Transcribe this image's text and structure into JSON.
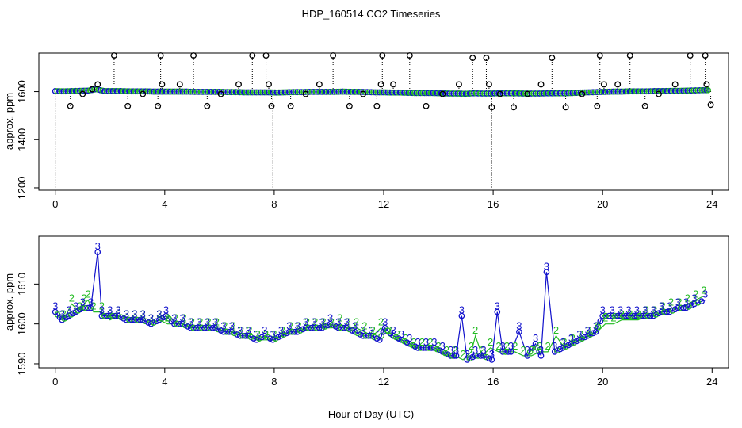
{
  "title": "HDP_160514  CO2 Timeseries",
  "xlabel": "Hour of Day (UTC)",
  "colors": {
    "green": "#22bb22",
    "blue": "#1111cc",
    "black": "#000000"
  },
  "chart_data": [
    {
      "type": "scatter",
      "title": "HDP_160514  CO2 Timeseries",
      "ylabel": "approx. ppm",
      "xlim": [
        -0.6,
        24.6
      ],
      "ylim": [
        1190,
        1760
      ],
      "x_ticks": [
        "0",
        "4",
        "8",
        "12",
        "16",
        "20",
        "24"
      ],
      "y_ticks": [
        "1200",
        "1400",
        "1600"
      ],
      "grid": false,
      "series": [
        {
          "marker": "green/blue circles",
          "x": [
            0.0,
            0.3,
            0.6,
            0.9,
            1.2,
            1.5,
            1.8,
            2.1,
            2.4,
            2.7,
            3.0,
            3.3,
            3.6,
            3.9,
            4.2,
            4.5,
            4.8,
            5.1,
            5.4,
            5.7,
            6.0,
            6.3,
            6.6,
            6.9,
            7.2,
            7.5,
            7.8,
            8.1,
            8.4,
            8.7,
            9.0,
            9.3,
            9.6,
            9.9,
            10.2,
            10.5,
            10.8,
            11.1,
            11.4,
            11.7,
            12.0,
            12.3,
            12.6,
            12.9,
            13.2,
            13.5,
            13.8,
            14.1,
            14.4,
            14.7,
            15.0,
            15.3,
            15.6,
            15.9,
            16.2,
            16.5,
            16.8,
            17.1,
            17.4,
            17.7,
            18.0,
            18.3,
            18.6,
            18.9,
            19.2,
            19.5,
            19.8,
            20.1,
            20.4,
            20.7,
            21.0,
            21.3,
            21.6,
            21.9,
            22.2,
            22.5,
            22.8,
            23.1,
            23.4,
            23.7,
            23.9
          ],
          "y": [
            1602,
            1601,
            1602,
            1603,
            1604,
            1610,
            1602,
            1602,
            1602,
            1601,
            1601,
            1601,
            1600,
            1600,
            1600,
            1600,
            1600,
            1599,
            1599,
            1599,
            1599,
            1598,
            1598,
            1597,
            1597,
            1597,
            1597,
            1596,
            1597,
            1598,
            1598,
            1599,
            1599,
            1599,
            1599,
            1600,
            1599,
            1599,
            1598,
            1597,
            1597,
            1596,
            1596,
            1595,
            1594,
            1594,
            1594,
            1593,
            1592,
            1592,
            1591,
            1593,
            1592,
            1592,
            1593,
            1593,
            1593,
            1592,
            1592,
            1592,
            1593,
            1593,
            1593,
            1594,
            1596,
            1597,
            1598,
            1599,
            1600,
            1600,
            1601,
            1601,
            1601,
            1602,
            1602,
            1603,
            1603,
            1604,
            1605,
            1606,
            1606
          ]
        },
        {
          "marker": "black circles (outliers)",
          "x": [
            0.55,
            1.0,
            1.35,
            1.55,
            2.15,
            2.65,
            3.2,
            3.75,
            3.85,
            3.9,
            4.55,
            5.05,
            5.55,
            6.05,
            6.7,
            7.2,
            7.7,
            7.8,
            7.9,
            8.6,
            9.15,
            9.65,
            10.15,
            10.75,
            11.25,
            11.75,
            11.9,
            11.95,
            12.35,
            12.95,
            13.55,
            14.15,
            14.75,
            15.25,
            15.75,
            15.85,
            15.95,
            16.25,
            16.75,
            17.25,
            17.75,
            18.15,
            18.65,
            19.25,
            19.8,
            19.9,
            20.05,
            20.55,
            21.0,
            21.55,
            22.05,
            22.65,
            23.2,
            23.75,
            23.8,
            23.95
          ],
          "y": [
            1540,
            1590,
            1610,
            1630,
            1750,
            1540,
            1590,
            1540,
            1750,
            1630,
            1630,
            1750,
            1540,
            1590,
            1630,
            1750,
            1750,
            1630,
            1540,
            1540,
            1590,
            1630,
            1750,
            1540,
            1590,
            1540,
            1630,
            1750,
            1630,
            1750,
            1540,
            1590,
            1630,
            1740,
            1740,
            1630,
            1535,
            1590,
            1535,
            1590,
            1630,
            1740,
            1535,
            1590,
            1540,
            1750,
            1630,
            1630,
            1750,
            1540,
            1590,
            1630,
            1750,
            1750,
            1630,
            1545
          ]
        }
      ]
    },
    {
      "type": "line",
      "ylabel": "approx. ppm",
      "xlim": [
        -0.6,
        24.6
      ],
      "ylim": [
        1589,
        1622
      ],
      "x_ticks": [
        "0",
        "4",
        "8",
        "12",
        "16",
        "20",
        "24"
      ],
      "y_ticks": [
        "1590",
        "1600",
        "1610"
      ],
      "grid": false,
      "series": [
        {
          "symbol": "2",
          "color": "#22bb22",
          "x": [
            0.3,
            0.6,
            0.9,
            1.05,
            1.2,
            1.4,
            1.7,
            2.0,
            2.3,
            2.6,
            2.9,
            3.2,
            3.5,
            3.8,
            4.1,
            4.4,
            4.7,
            5.0,
            5.3,
            5.6,
            5.9,
            6.2,
            6.5,
            6.8,
            7.1,
            7.4,
            7.7,
            8.0,
            8.3,
            8.6,
            8.9,
            9.2,
            9.5,
            9.8,
            10.1,
            10.4,
            10.7,
            11.0,
            11.3,
            11.6,
            11.9,
            12.2,
            12.5,
            12.8,
            13.1,
            13.4,
            13.7,
            14.0,
            14.3,
            14.6,
            14.9,
            15.2,
            15.35,
            15.6,
            15.9,
            16.2,
            16.5,
            16.8,
            17.1,
            17.4,
            17.7,
            18.0,
            18.3,
            18.6,
            18.9,
            19.2,
            19.5,
            19.8,
            20.1,
            20.4,
            20.7,
            21.0,
            21.3,
            21.6,
            21.9,
            22.2,
            22.5,
            22.8,
            23.1,
            23.4,
            23.7
          ],
          "y": [
            1601,
            1605,
            1603,
            1605,
            1606,
            1603,
            1603,
            1601,
            1602,
            1601,
            1601,
            1601,
            1600,
            1601,
            1600,
            1600,
            1600,
            1599,
            1599,
            1599,
            1599,
            1598,
            1598,
            1597,
            1597,
            1596,
            1596,
            1596,
            1597,
            1598,
            1598,
            1599,
            1599,
            1599,
            1599,
            1600,
            1599,
            1599,
            1598,
            1597,
            1599,
            1597,
            1596,
            1595,
            1594,
            1594,
            1594,
            1593,
            1592,
            1592,
            1591,
            1593,
            1597,
            1592,
            1594,
            1593,
            1593,
            1593,
            1592,
            1592,
            1593,
            1593,
            1597,
            1594,
            1595,
            1596,
            1597,
            1598,
            1600,
            1600,
            1601,
            1601,
            1601,
            1602,
            1602,
            1603,
            1604,
            1604,
            1605,
            1606,
            1607
          ]
        },
        {
          "symbol": "3",
          "color": "#1111cc",
          "x": [
            0.0,
            0.25,
            0.5,
            0.75,
            1.0,
            1.3,
            1.55,
            1.7,
            2.0,
            2.3,
            2.6,
            2.9,
            3.2,
            3.5,
            3.8,
            4.05,
            4.35,
            4.65,
            4.95,
            5.25,
            5.55,
            5.85,
            6.15,
            6.45,
            6.75,
            7.05,
            7.35,
            7.65,
            7.95,
            8.25,
            8.55,
            8.85,
            9.15,
            9.45,
            9.75,
            10.05,
            10.35,
            10.65,
            10.95,
            11.25,
            11.55,
            11.85,
            12.05,
            12.35,
            12.65,
            12.95,
            13.25,
            13.55,
            13.85,
            14.15,
            14.45,
            14.65,
            14.85,
            15.05,
            15.35,
            15.65,
            15.95,
            16.15,
            16.35,
            16.65,
            16.95,
            17.25,
            17.55,
            17.75,
            17.95,
            18.25,
            18.55,
            18.85,
            19.15,
            19.45,
            19.75,
            20.0,
            20.35,
            20.65,
            20.95,
            21.25,
            21.55,
            21.85,
            22.15,
            22.45,
            22.75,
            23.05,
            23.35,
            23.75
          ],
          "y": [
            1603,
            1601,
            1602,
            1603,
            1604,
            1604,
            1618,
            1602,
            1602,
            1602,
            1601,
            1601,
            1601,
            1600,
            1601,
            1602,
            1600,
            1600,
            1599,
            1599,
            1599,
            1599,
            1598,
            1598,
            1597,
            1597,
            1596,
            1597,
            1596,
            1597,
            1598,
            1598,
            1599,
            1599,
            1599,
            1600,
            1599,
            1599,
            1598,
            1597,
            1597,
            1596,
            1599,
            1597,
            1596,
            1595,
            1594,
            1594,
            1594,
            1593,
            1592,
            1592,
            1602,
            1591,
            1592,
            1592,
            1591,
            1603,
            1593,
            1593,
            1598,
            1592,
            1595,
            1592,
            1613,
            1593,
            1594,
            1595,
            1596,
            1597,
            1598,
            1602,
            1602,
            1602,
            1602,
            1602,
            1602,
            1602,
            1603,
            1603,
            1604,
            1604,
            1605,
            1606
          ]
        }
      ]
    }
  ]
}
